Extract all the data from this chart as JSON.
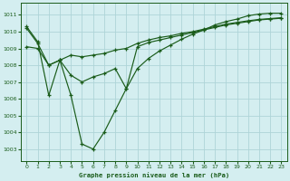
{
  "background_color": "#d4eef0",
  "grid_color": "#aed4d8",
  "line_color": "#1a5c1a",
  "title": "Graphe pression niveau de la mer (hPa)",
  "xlim": [
    -0.5,
    23.5
  ],
  "ylim": [
    1002.3,
    1011.7
  ],
  "xticks": [
    0,
    1,
    2,
    3,
    4,
    5,
    6,
    7,
    8,
    9,
    10,
    11,
    12,
    13,
    14,
    15,
    16,
    17,
    18,
    19,
    20,
    21,
    22,
    23
  ],
  "yticks": [
    1003,
    1004,
    1005,
    1006,
    1007,
    1008,
    1009,
    1010,
    1011
  ],
  "series": [
    {
      "x": [
        0,
        1,
        2,
        3,
        4,
        5,
        6,
        7,
        8,
        9,
        10,
        11,
        12,
        13,
        14,
        15,
        16,
        17,
        18,
        19,
        20,
        21,
        22,
        23
      ],
      "y": [
        1010.3,
        1009.4,
        1006.2,
        1008.3,
        1006.2,
        1003.3,
        1003.0,
        1004.0,
        1005.3,
        1006.6,
        1007.8,
        1008.4,
        1008.85,
        1009.2,
        1009.55,
        1009.85,
        1010.1,
        1010.4,
        1010.6,
        1010.75,
        1010.95,
        1011.05,
        1011.1,
        1011.1
      ]
    },
    {
      "x": [
        0,
        1,
        2,
        3,
        4,
        5,
        6,
        7,
        8,
        9,
        10,
        11,
        12,
        13,
        14,
        15,
        16,
        17,
        18,
        19,
        20,
        21,
        22,
        23
      ],
      "y": [
        1010.2,
        1009.3,
        1008.0,
        1008.3,
        1007.4,
        1007.0,
        1007.3,
        1007.5,
        1007.8,
        1006.6,
        1009.1,
        1009.35,
        1009.5,
        1009.65,
        1009.8,
        1009.95,
        1010.1,
        1010.25,
        1010.4,
        1010.5,
        1010.6,
        1010.7,
        1010.75,
        1010.8
      ]
    },
    {
      "x": [
        0,
        1,
        2,
        3,
        4,
        5,
        6,
        7,
        8,
        9,
        10,
        11,
        12,
        13,
        14,
        15,
        16,
        17,
        18,
        19,
        20,
        21,
        22,
        23
      ],
      "y": [
        1009.1,
        1009.0,
        1008.0,
        1008.3,
        1008.6,
        1008.5,
        1008.6,
        1008.7,
        1008.9,
        1009.0,
        1009.3,
        1009.5,
        1009.65,
        1009.75,
        1009.9,
        1010.0,
        1010.15,
        1010.3,
        1010.45,
        1010.55,
        1010.65,
        1010.73,
        1010.78,
        1010.83
      ]
    }
  ]
}
